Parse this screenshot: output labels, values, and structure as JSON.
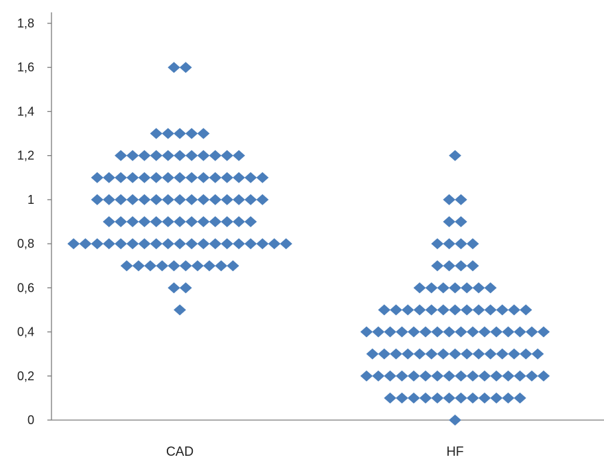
{
  "chart_data": {
    "type": "scatter",
    "subtype": "dot-plot",
    "title": "",
    "xlabel": "",
    "ylabel": "",
    "ylim": [
      0,
      1.8
    ],
    "y_ticks": [
      "0",
      "0,2",
      "0,4",
      "0,6",
      "0,8",
      "1",
      "1,2",
      "1,4",
      "1,6",
      "1,8"
    ],
    "y_tick_values": [
      0,
      0.2,
      0.4,
      0.6,
      0.8,
      1.0,
      1.2,
      1.4,
      1.6,
      1.8
    ],
    "categories": [
      "CAD",
      "HF"
    ],
    "marker": "diamond",
    "color": "#4a7ebb",
    "grid": false,
    "groups": [
      {
        "name": "CAD",
        "levels": [
          {
            "y": 1.6,
            "count": 2
          },
          {
            "y": 1.3,
            "count": 5
          },
          {
            "y": 1.2,
            "count": 11
          },
          {
            "y": 1.1,
            "count": 15
          },
          {
            "y": 1.0,
            "count": 15
          },
          {
            "y": 0.9,
            "count": 13
          },
          {
            "y": 0.8,
            "count": 19
          },
          {
            "y": 0.7,
            "count": 10
          },
          {
            "y": 0.6,
            "count": 2
          },
          {
            "y": 0.5,
            "count": 1
          }
        ]
      },
      {
        "name": "HF",
        "levels": [
          {
            "y": 1.2,
            "count": 1
          },
          {
            "y": 1.0,
            "count": 2
          },
          {
            "y": 0.9,
            "count": 2
          },
          {
            "y": 0.8,
            "count": 4
          },
          {
            "y": 0.7,
            "count": 4
          },
          {
            "y": 0.6,
            "count": 7
          },
          {
            "y": 0.5,
            "count": 13
          },
          {
            "y": 0.4,
            "count": 16
          },
          {
            "y": 0.3,
            "count": 15
          },
          {
            "y": 0.2,
            "count": 16
          },
          {
            "y": 0.1,
            "count": 12
          },
          {
            "y": 0.0,
            "count": 1
          }
        ]
      }
    ]
  }
}
